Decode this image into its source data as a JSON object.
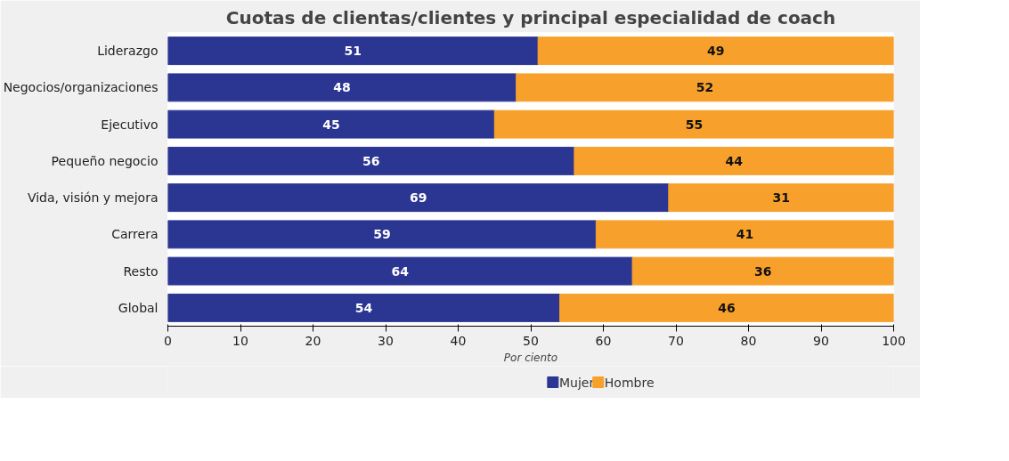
{
  "chart_data": {
    "type": "bar",
    "orientation": "horizontal",
    "stacked": true,
    "title": "Cuotas de clientas/clientes y principal especialidad de coach",
    "xlabel": "Por ciento",
    "categories": [
      "Liderazgo",
      "Negocios/organizaciones",
      "Ejecutivo",
      "Pequeño negocio",
      "Vida, visión y mejora",
      "Carrera",
      "Resto",
      "Global"
    ],
    "series": [
      {
        "name": "Mujer",
        "color": "#2b3592",
        "values": [
          51,
          48,
          45,
          56,
          69,
          59,
          64,
          54
        ]
      },
      {
        "name": "Hombre",
        "color": "#f7a02b",
        "values": [
          49,
          52,
          55,
          44,
          31,
          41,
          36,
          46
        ]
      }
    ],
    "xlim": [
      0,
      100
    ],
    "xticks": [
      0,
      10,
      20,
      30,
      40,
      50,
      60,
      70,
      80,
      90,
      100
    ],
    "data_labels": true,
    "legend": "bottom",
    "grid": false
  }
}
